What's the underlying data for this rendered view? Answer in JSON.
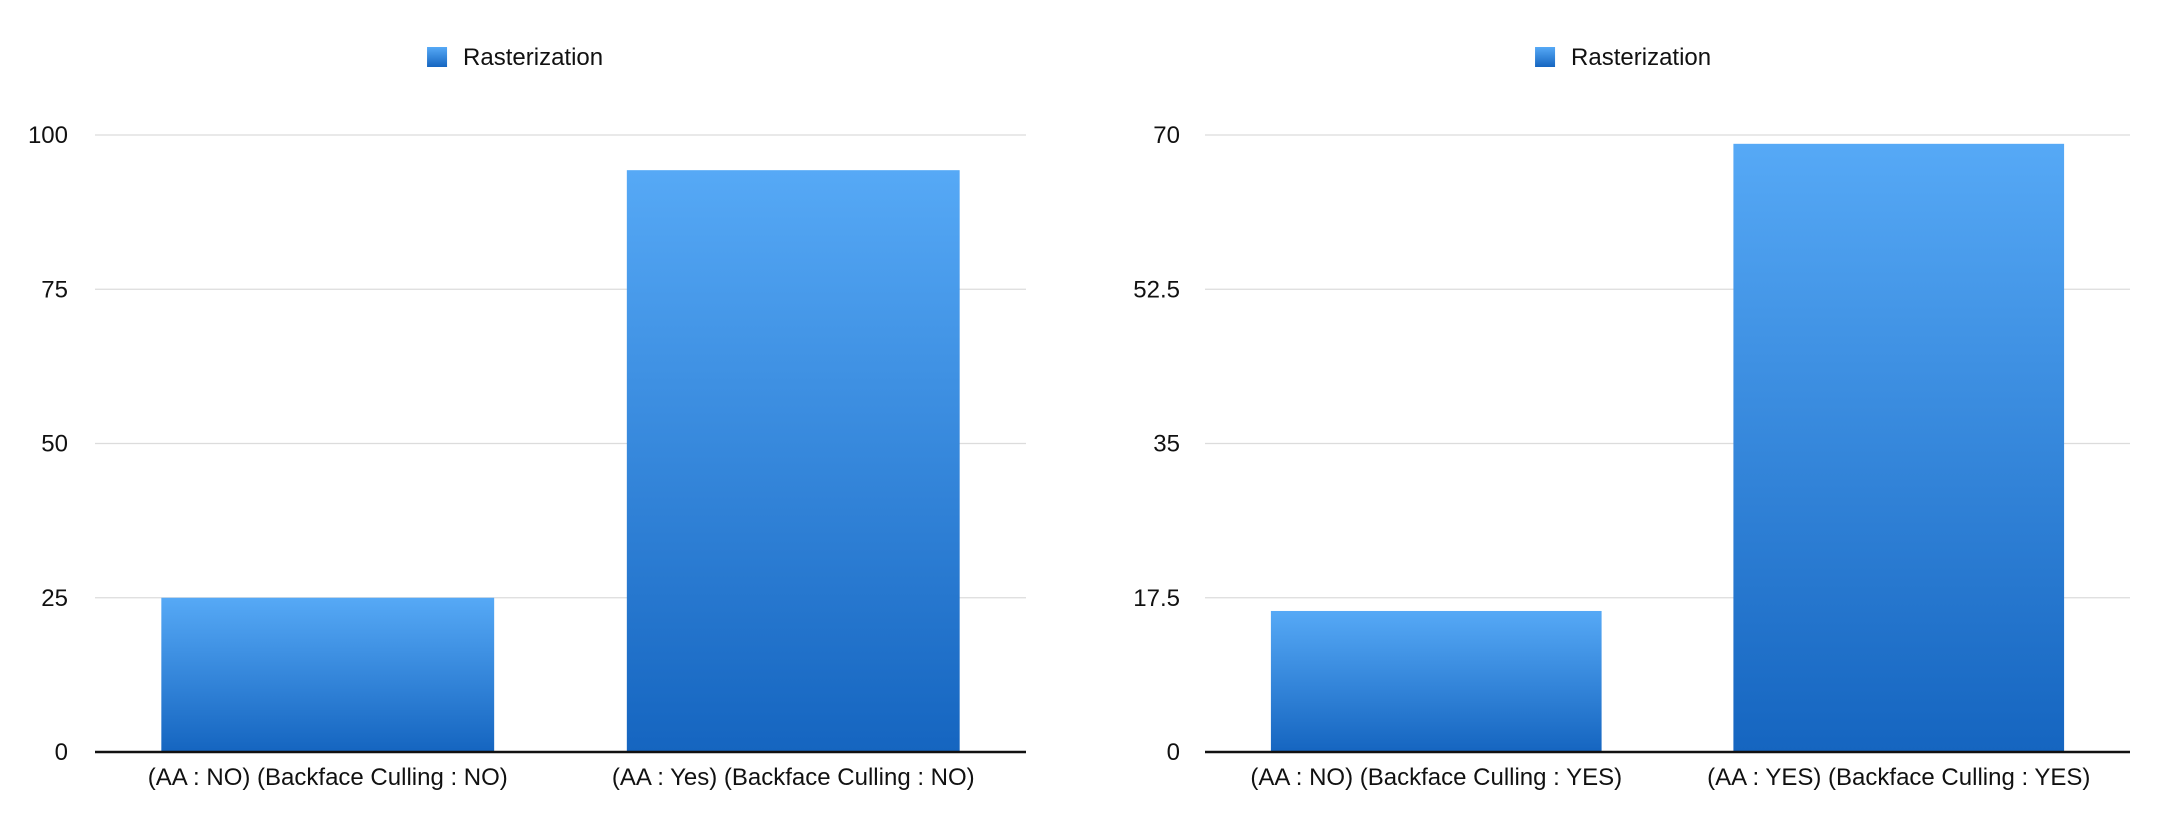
{
  "chart_data": [
    {
      "type": "bar",
      "legend": [
        "Rasterization"
      ],
      "legend_position": "top",
      "grid": true,
      "categories": [
        "(AA : NO) (Backface Culling : NO)",
        "(AA : Yes) (Backface Culling : NO)"
      ],
      "series": [
        {
          "name": "Rasterization",
          "values": [
            25,
            94.3
          ]
        }
      ],
      "yticks": [
        "0",
        "25",
        "50",
        "75",
        "100"
      ],
      "ylim": [
        0,
        100
      ],
      "color": "#2f86de"
    },
    {
      "type": "bar",
      "legend": [
        "Rasterization"
      ],
      "legend_position": "top",
      "grid": true,
      "categories": [
        "(AA : NO) (Backface Culling : YES)",
        "(AA : YES) (Backface Culling : YES)"
      ],
      "series": [
        {
          "name": "Rasterization",
          "values": [
            16,
            69
          ]
        }
      ],
      "yticks": [
        "0",
        "17.5",
        "35",
        "52.5",
        "70"
      ],
      "ylim": [
        0,
        70
      ],
      "color": "#2f86de"
    }
  ]
}
